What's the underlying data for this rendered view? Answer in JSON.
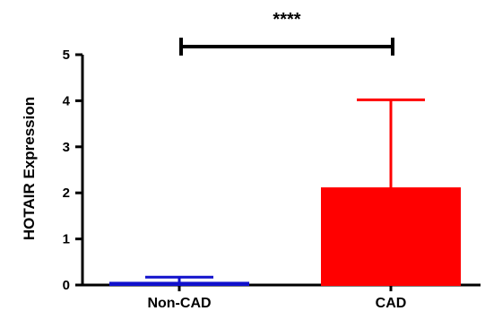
{
  "chart_data": {
    "type": "bar",
    "categories": [
      "Non-CAD",
      "CAD"
    ],
    "values": [
      0.05,
      2.1
    ],
    "error_upper": [
      0.17,
      4.02
    ],
    "colors": [
      "#1111cc",
      "#ff0000"
    ],
    "ylabel": "HOTAIR Expression",
    "xlabel": "",
    "ylim": [
      0,
      5
    ],
    "yticks": [
      0,
      1,
      2,
      3,
      4,
      5
    ],
    "ytick_labels": [
      "0",
      "1",
      "2",
      "3",
      "4",
      "5"
    ],
    "grid": false,
    "legend": "none",
    "annotation": {
      "text": "****",
      "between": [
        "Non-CAD",
        "CAD"
      ]
    }
  }
}
